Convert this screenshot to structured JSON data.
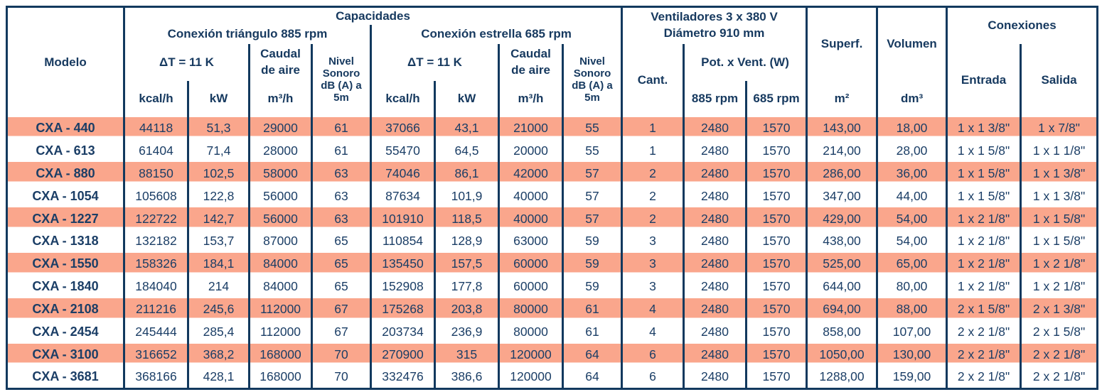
{
  "colors": {
    "navy_border": "#12395E",
    "navy_text": "#1B3E66",
    "stripe_salmon": "#FAA68C",
    "background": "#FFFFFF"
  },
  "table": {
    "header": {
      "modelo": "Modelo",
      "capacidades": "Capacidades",
      "triangulo": "Conexión triángulo 885 rpm",
      "estrella": "Conexión estrella 685 rpm",
      "delta_t": "ΔT = 11 K",
      "caudal": {
        "l1": "Caudal",
        "l2": "de aire"
      },
      "nivel": {
        "l1": "Nivel",
        "l2": "Sonoro",
        "l3": "dB (A) a",
        "l4": "5m"
      },
      "ventiladores": {
        "l1": "Ventiladores 3 x 380 V",
        "l2": "Diámetro 910 mm"
      },
      "cant": "Cant.",
      "pot": "Pot. x Vent. (W)",
      "rpm885": "885 rpm",
      "rpm685": "685 rpm",
      "superf": {
        "label": "Superf.",
        "unit": "m²"
      },
      "volumen": {
        "label": "Volumen",
        "unit": "dm³"
      },
      "conexiones": "Conexiones",
      "entrada": "Entrada",
      "salida": "Salida",
      "units": {
        "kcal": "kcal/h",
        "kw": "kW",
        "m3h": "m³/h"
      }
    },
    "column_keys": [
      "model",
      "tri-kcal",
      "tri-kw",
      "tri-caudal",
      "tri-nivel",
      "est-kcal",
      "est-kw",
      "est-caudal",
      "est-nivel",
      "cant",
      "pot-885",
      "pot-685",
      "superf",
      "volumen",
      "entrada",
      "salida"
    ],
    "rows": [
      [
        "CXA - 440",
        "44118",
        "51,3",
        "29000",
        "61",
        "37066",
        "43,1",
        "21000",
        "55",
        "1",
        "2480",
        "1570",
        "143,00",
        "18,00",
        "1 x 1 3/8\"",
        "1 x 7/8\""
      ],
      [
        "CXA - 613",
        "61404",
        "71,4",
        "28000",
        "61",
        "55470",
        "64,5",
        "20000",
        "55",
        "1",
        "2480",
        "1570",
        "214,00",
        "28,00",
        "1 x 1 5/8\"",
        "1 x 1 1/8\""
      ],
      [
        "CXA - 880",
        "88150",
        "102,5",
        "58000",
        "63",
        "74046",
        "86,1",
        "42000",
        "57",
        "2",
        "2480",
        "1570",
        "286,00",
        "36,00",
        "1 x 1 5/8\"",
        "1 x 1 3/8\""
      ],
      [
        "CXA - 1054",
        "105608",
        "122,8",
        "56000",
        "63",
        "87634",
        "101,9",
        "40000",
        "57",
        "2",
        "2480",
        "1570",
        "347,00",
        "44,00",
        "1 x 1 5/8\"",
        "1 x 1 3/8\""
      ],
      [
        "CXA - 1227",
        "122722",
        "142,7",
        "56000",
        "63",
        "101910",
        "118,5",
        "40000",
        "57",
        "2",
        "2480",
        "1570",
        "429,00",
        "54,00",
        "1 x 2 1/8\"",
        "1 x 1 5/8\""
      ],
      [
        "CXA - 1318",
        "132182",
        "153,7",
        "87000",
        "65",
        "110854",
        "128,9",
        "63000",
        "59",
        "3",
        "2480",
        "1570",
        "438,00",
        "54,00",
        "1 x 2 1/8\"",
        "1 x 1 5/8\""
      ],
      [
        "CXA - 1550",
        "158326",
        "184,1",
        "84000",
        "65",
        "135450",
        "157,5",
        "60000",
        "59",
        "3",
        "2480",
        "1570",
        "525,00",
        "65,00",
        "1 x 2 1/8\"",
        "1 x 2 1/8\""
      ],
      [
        "CXA - 1840",
        "184040",
        "214",
        "84000",
        "65",
        "152908",
        "177,8",
        "60000",
        "59",
        "3",
        "2480",
        "1570",
        "644,00",
        "80,00",
        "1 x 2 1/8\"",
        "1 x 2 1/8\""
      ],
      [
        "CXA - 2108",
        "211216",
        "245,6",
        "112000",
        "67",
        "175268",
        "203,8",
        "80000",
        "61",
        "4",
        "2480",
        "1570",
        "694,00",
        "88,00",
        "2 x 1 5/8\"",
        "2 x 1 3/8\""
      ],
      [
        "CXA - 2454",
        "245444",
        "285,4",
        "112000",
        "67",
        "203734",
        "236,9",
        "80000",
        "61",
        "4",
        "2480",
        "1570",
        "858,00",
        "107,00",
        "2 x 2 1/8\"",
        "2 x 1 5/8\""
      ],
      [
        "CXA - 3100",
        "316652",
        "368,2",
        "168000",
        "70",
        "270900",
        "315",
        "120000",
        "64",
        "6",
        "2480",
        "1570",
        "1050,00",
        "130,00",
        "2 x 2 1/8\"",
        "2 x 2 1/8\""
      ],
      [
        "CXA - 3681",
        "368166",
        "428,1",
        "168000",
        "70",
        "332476",
        "386,6",
        "120000",
        "64",
        "6",
        "2480",
        "1570",
        "1288,00",
        "159,00",
        "2 x 2 1/8\"",
        "2 x 2 1/8\""
      ]
    ]
  }
}
